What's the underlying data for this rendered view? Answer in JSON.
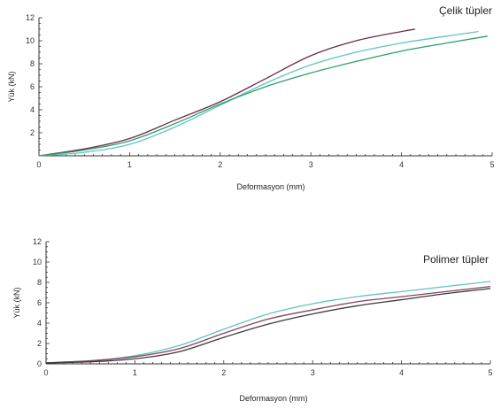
{
  "chart_data": [
    {
      "type": "line",
      "title": "Çelik tüpler",
      "xlabel": "Deformasyon (mm)",
      "ylabel": "Yük (kN)",
      "xlim": [
        0,
        5
      ],
      "ylim": [
        0,
        12
      ],
      "x_ticks": [
        "0",
        "1",
        "2",
        "3",
        "4",
        "5"
      ],
      "y_ticks": [
        "2",
        "4",
        "6",
        "8",
        "10",
        "12"
      ],
      "grid": false,
      "series": [
        {
          "color": "#6b2a4a",
          "x": [
            0,
            0.5,
            1.0,
            1.5,
            2.0,
            2.5,
            3.0,
            3.5,
            4.0,
            4.15
          ],
          "y": [
            0,
            0.6,
            1.5,
            3.1,
            4.7,
            6.7,
            8.7,
            10.0,
            10.8,
            11.0
          ]
        },
        {
          "color": "#5fc4c4",
          "x": [
            0,
            0.5,
            1.0,
            1.5,
            2.0,
            2.5,
            3.0,
            3.5,
            4.0,
            4.5,
            4.85
          ],
          "y": [
            0,
            0.3,
            1.0,
            2.5,
            4.4,
            6.3,
            7.9,
            9.0,
            9.8,
            10.4,
            10.8
          ]
        },
        {
          "color": "#2e9e66",
          "x": [
            0,
            0.5,
            1.0,
            1.5,
            2.0,
            2.5,
            3.0,
            3.5,
            4.0,
            4.5,
            4.95
          ],
          "y": [
            0,
            0.5,
            1.3,
            2.8,
            4.5,
            6.0,
            7.2,
            8.2,
            9.1,
            9.8,
            10.4
          ]
        }
      ]
    },
    {
      "type": "line",
      "title": "Polimer tüpler",
      "xlabel": "Deformasyon (mm)",
      "ylabel": "Yük (kN)",
      "xlim": [
        0,
        5
      ],
      "ylim": [
        0,
        12
      ],
      "x_ticks": [
        "0",
        "1",
        "2",
        "3",
        "4",
        "5"
      ],
      "y_ticks": [
        "0",
        "2",
        "4",
        "6",
        "8",
        "10",
        "12"
      ],
      "grid": false,
      "series": [
        {
          "color": "#5fc4c4",
          "x": [
            0,
            0.5,
            1.0,
            1.5,
            2.0,
            2.5,
            3.0,
            3.5,
            4.0,
            4.5,
            5.0
          ],
          "y": [
            0.1,
            0.3,
            0.8,
            1.8,
            3.4,
            4.9,
            5.9,
            6.6,
            7.1,
            7.6,
            8.1
          ]
        },
        {
          "color": "#8a4060",
          "x": [
            0,
            0.5,
            1.0,
            1.5,
            2.0,
            2.5,
            3.0,
            3.5,
            4.0,
            4.5,
            5.0
          ],
          "y": [
            0.1,
            0.3,
            0.7,
            1.5,
            3.0,
            4.4,
            5.3,
            6.1,
            6.6,
            7.1,
            7.6
          ]
        },
        {
          "color": "#3a3a3a",
          "x": [
            0,
            0.5,
            1.0,
            1.5,
            2.0,
            2.5,
            3.0,
            3.5,
            4.0,
            4.5,
            5.0
          ],
          "y": [
            0.1,
            0.2,
            0.5,
            1.2,
            2.6,
            3.9,
            4.9,
            5.7,
            6.3,
            6.9,
            7.4
          ]
        }
      ]
    }
  ]
}
